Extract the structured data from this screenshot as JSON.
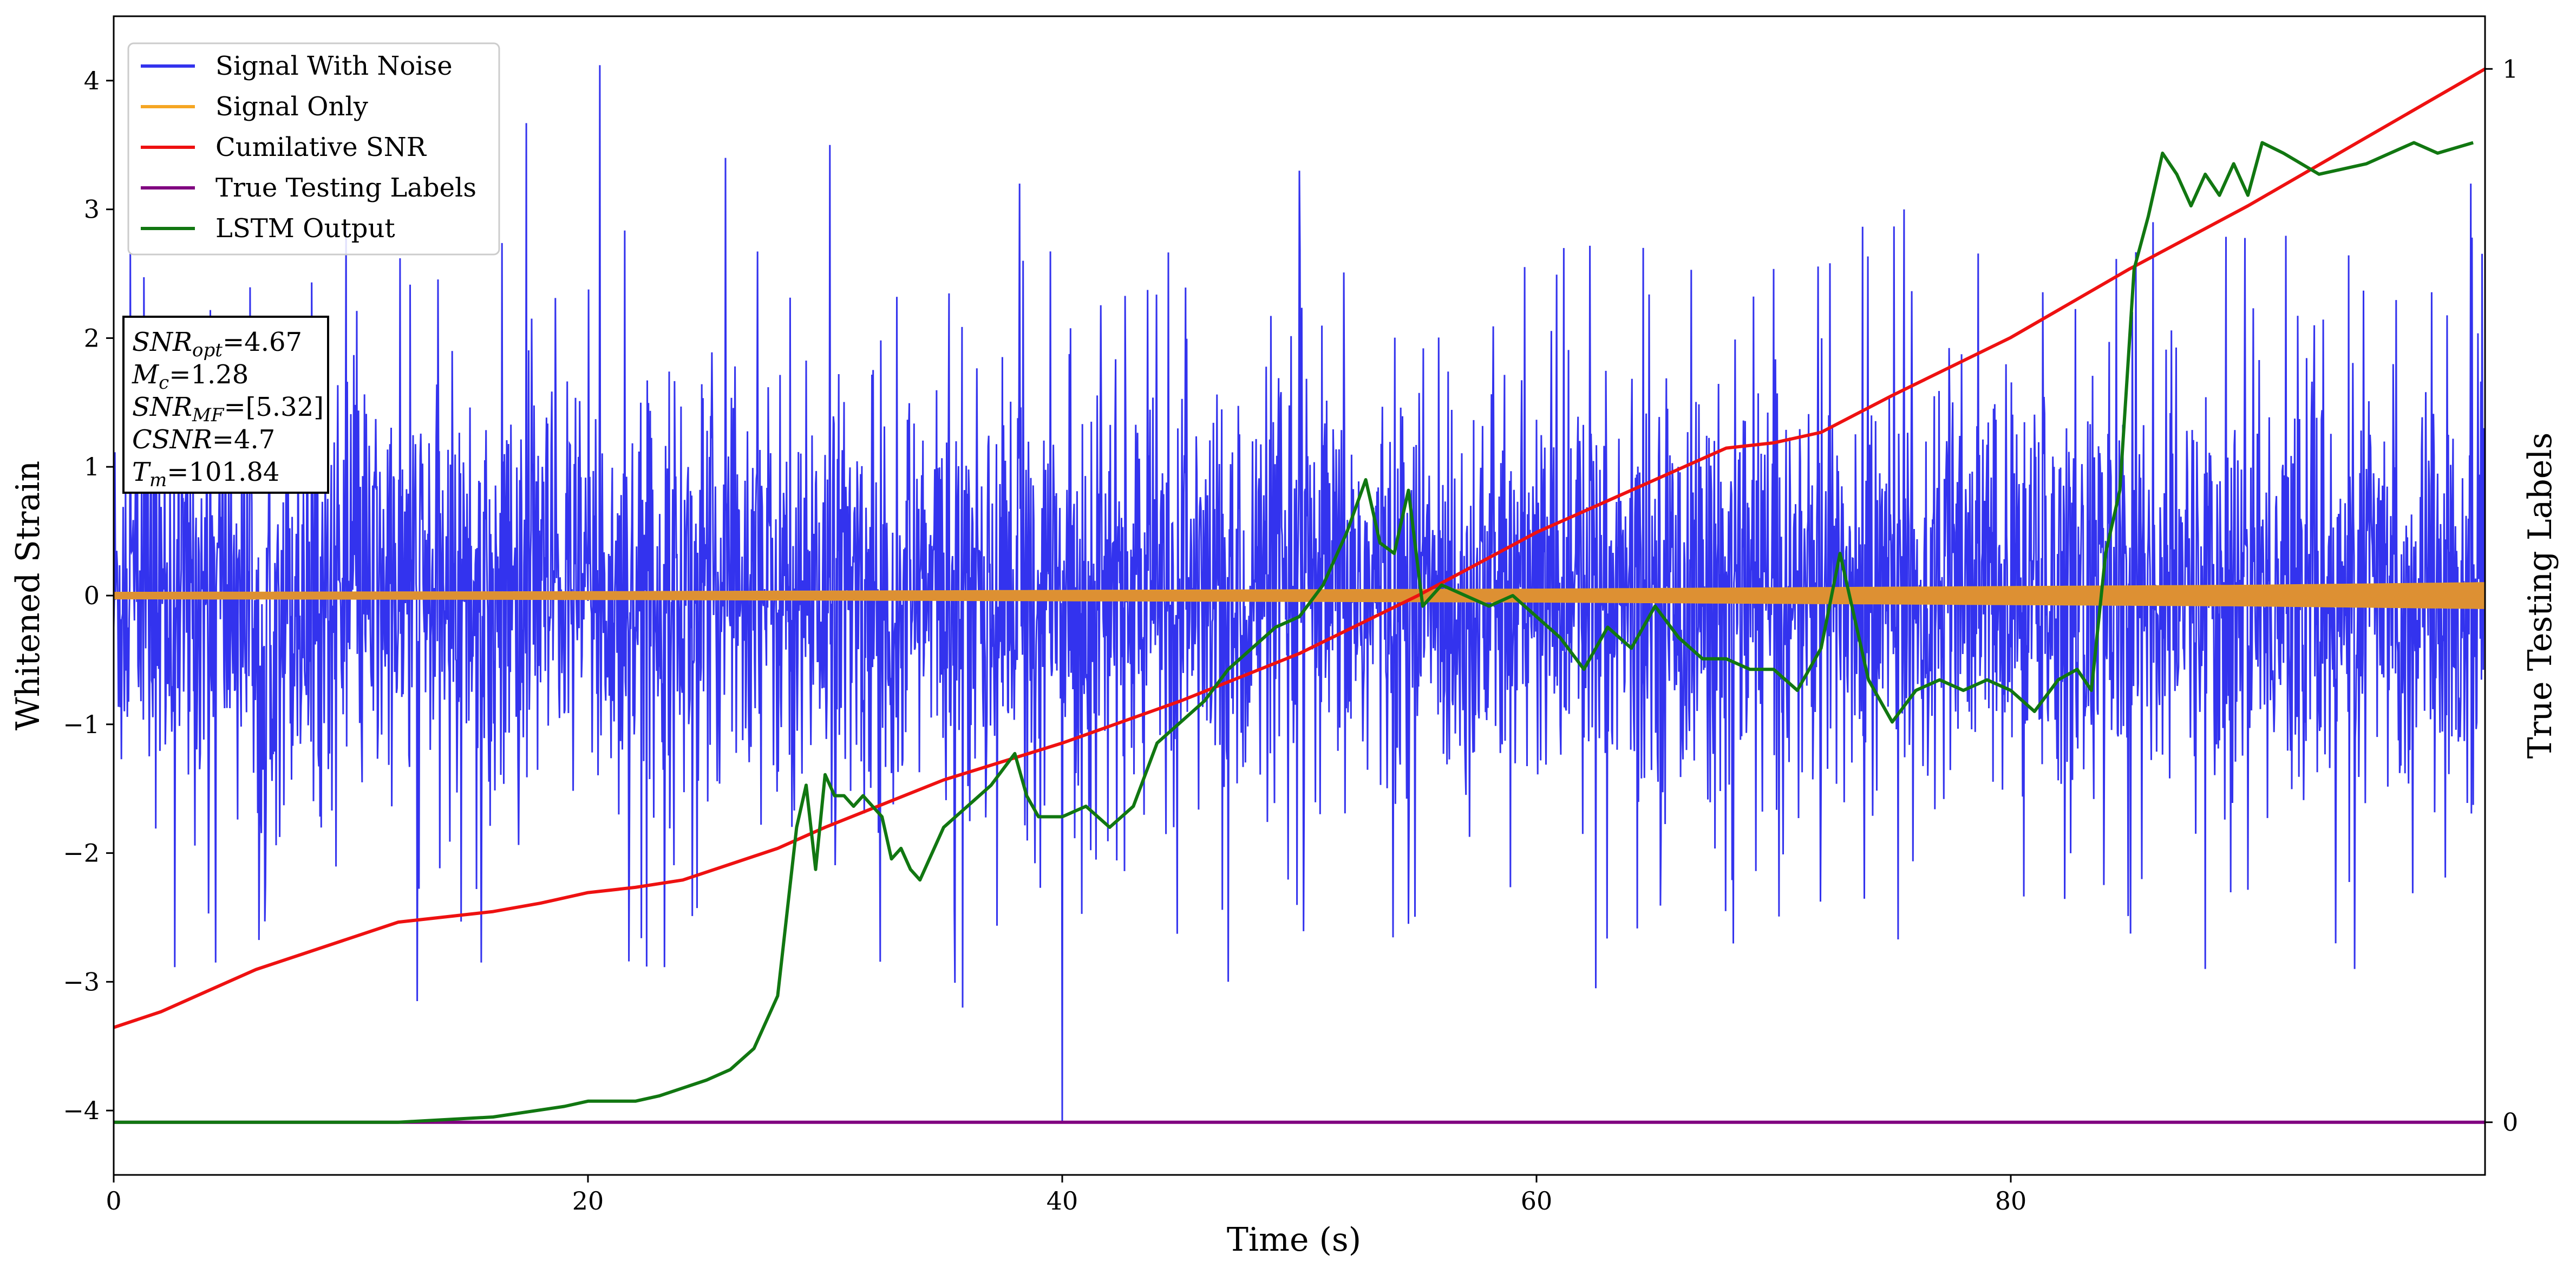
{
  "chart_data": {
    "type": "line",
    "xlabel": "Time (s)",
    "ylabel": "Whitened Strain",
    "ylabel_right": "True Testing Labels",
    "xlim": [
      0,
      100
    ],
    "ylim": [
      -4.5,
      4.5
    ],
    "ylim_right": [
      -0.05,
      1.05
    ],
    "x_ticks": [
      0,
      20,
      40,
      60,
      80
    ],
    "y_ticks": [
      -4,
      -3,
      -2,
      -1,
      0,
      1,
      2,
      3,
      4
    ],
    "y_ticks_right": [
      0,
      1
    ],
    "legend_position": "top-left",
    "annotation": [
      {
        "sym": "SNR",
        "sub": "opt",
        "value": "=4.67"
      },
      {
        "sym": "M",
        "sub": "c",
        "value": "=1.28"
      },
      {
        "sym": "SNR",
        "sub": "MF",
        "value": "=[5.32]"
      },
      {
        "sym": "CSNR",
        "sub": "",
        "value": "=4.7"
      },
      {
        "sym": "T",
        "sub": "m",
        "value": "=101.84"
      }
    ],
    "series": [
      {
        "name": "Signal With Noise",
        "color": "#3333ee",
        "axis": "left",
        "description_values": {
          "band_mean": 0.0,
          "band_std": 0.8,
          "max": 4.1,
          "min": -4.1
        },
        "spikes": [
          [
            4.3,
            -2.85
          ],
          [
            12.8,
            -3.15
          ],
          [
            15.5,
            -2.85
          ],
          [
            17.4,
            3.67
          ],
          [
            20.5,
            4.12
          ],
          [
            25.8,
            3.4
          ],
          [
            30.2,
            3.5
          ],
          [
            35.8,
            -3.2
          ],
          [
            38.2,
            3.2
          ],
          [
            40.0,
            -4.1
          ],
          [
            47.0,
            -3.0
          ],
          [
            50.0,
            3.3
          ],
          [
            62.5,
            -3.05
          ],
          [
            75.5,
            3.0
          ],
          [
            86.0,
            2.9
          ],
          [
            88.2,
            -2.9
          ],
          [
            94.5,
            -2.9
          ],
          [
            99.4,
            3.2
          ]
        ]
      },
      {
        "name": "Signal Only",
        "color": "#f5a623",
        "axis": "left",
        "envelope": {
          "x": [
            0,
            20,
            40,
            60,
            70,
            80,
            90,
            100
          ],
          "amplitude": [
            0.025,
            0.03,
            0.04,
            0.05,
            0.06,
            0.07,
            0.08,
            0.1
          ]
        }
      },
      {
        "name": "Cumilative SNR",
        "color": "#ee1111",
        "axis": "right",
        "x": [
          0,
          2,
          4,
          6,
          8,
          10,
          12,
          14,
          16,
          18,
          20,
          22,
          24,
          26,
          28,
          30,
          35,
          40,
          45,
          50,
          55,
          60,
          65,
          68,
          70,
          72,
          75,
          80,
          85,
          90,
          95,
          100
        ],
        "y": [
          0.09,
          0.105,
          0.125,
          0.145,
          0.16,
          0.175,
          0.19,
          0.195,
          0.2,
          0.208,
          0.218,
          0.223,
          0.23,
          0.245,
          0.26,
          0.28,
          0.325,
          0.36,
          0.4,
          0.445,
          0.5,
          0.56,
          0.61,
          0.64,
          0.645,
          0.655,
          0.69,
          0.745,
          0.81,
          0.87,
          0.935,
          1.0
        ]
      },
      {
        "name": "True Testing Labels",
        "color": "#800080",
        "axis": "right",
        "x": [
          0,
          100
        ],
        "y": [
          0,
          0
        ]
      },
      {
        "name": "LSTM Output",
        "color": "#117711",
        "axis": "right",
        "x": [
          0,
          12,
          16,
          19,
          20,
          22,
          23,
          25,
          26,
          27,
          28,
          28.8,
          29.2,
          29.6,
          30.0,
          30.4,
          30.8,
          31.2,
          31.6,
          32.0,
          32.4,
          32.8,
          33.2,
          33.6,
          34.0,
          34.4,
          35.0,
          36.0,
          37.0,
          38.0,
          38.5,
          39.0,
          40.0,
          41.0,
          42.0,
          43.0,
          44.0,
          45.0,
          46.0,
          47.0,
          48.0,
          49.0,
          50.0,
          51.0,
          52.0,
          52.8,
          53.4,
          54.0,
          54.6,
          55.2,
          56.0,
          57.0,
          58.0,
          59.0,
          60.0,
          61.0,
          62.0,
          63.0,
          64.0,
          65.0,
          66.0,
          67.0,
          68.0,
          69.0,
          70.0,
          71.0,
          72.0,
          72.8,
          73.4,
          74.0,
          75.0,
          76.0,
          77.0,
          78.0,
          79.0,
          80.0,
          81.0,
          82.0,
          82.8,
          83.4,
          84.0,
          84.6,
          85.2,
          85.8,
          86.4,
          87.0,
          87.6,
          88.2,
          88.8,
          89.4,
          90.0,
          90.6,
          91.5,
          93.0,
          95.0,
          96.0,
          97.0,
          98.0,
          99.5
        ],
        "y": [
          0.0,
          0.0,
          0.005,
          0.015,
          0.02,
          0.02,
          0.025,
          0.04,
          0.05,
          0.07,
          0.12,
          0.28,
          0.32,
          0.24,
          0.33,
          0.31,
          0.31,
          0.3,
          0.31,
          0.3,
          0.29,
          0.25,
          0.26,
          0.24,
          0.23,
          0.25,
          0.28,
          0.3,
          0.32,
          0.35,
          0.31,
          0.29,
          0.29,
          0.3,
          0.28,
          0.3,
          0.36,
          0.38,
          0.4,
          0.43,
          0.45,
          0.47,
          0.48,
          0.51,
          0.56,
          0.61,
          0.55,
          0.54,
          0.6,
          0.49,
          0.51,
          0.5,
          0.49,
          0.5,
          0.48,
          0.46,
          0.43,
          0.47,
          0.45,
          0.49,
          0.46,
          0.44,
          0.44,
          0.43,
          0.43,
          0.41,
          0.45,
          0.54,
          0.48,
          0.42,
          0.38,
          0.41,
          0.42,
          0.41,
          0.42,
          0.41,
          0.39,
          0.42,
          0.43,
          0.41,
          0.54,
          0.6,
          0.81,
          0.86,
          0.92,
          0.9,
          0.87,
          0.9,
          0.88,
          0.91,
          0.88,
          0.93,
          0.92,
          0.9,
          0.91,
          0.92,
          0.93,
          0.92,
          0.93
        ]
      }
    ]
  }
}
